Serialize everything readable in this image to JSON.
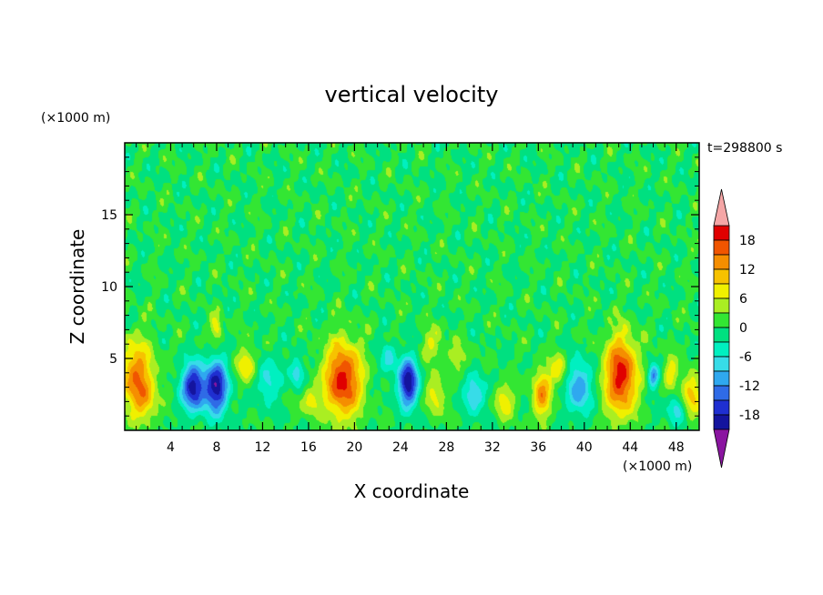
{
  "chart_data": {
    "type": "heatmap",
    "title": "vertical velocity",
    "xlabel": "X coordinate",
    "ylabel": "Z coordinate",
    "x_unit": "(×1000 m)",
    "y_unit": "(×1000 m)",
    "time_label": "t=298800 s",
    "xlim": [
      0,
      50
    ],
    "ylim": [
      0,
      20
    ],
    "x_ticks": [
      4,
      8,
      12,
      16,
      20,
      24,
      28,
      32,
      36,
      40,
      44,
      48
    ],
    "y_ticks": [
      5,
      10,
      15
    ],
    "colorbar": {
      "levels": [
        -21,
        -18,
        -15,
        -12,
        -9,
        -6,
        -3,
        0,
        3,
        6,
        9,
        12,
        15,
        18,
        21
      ],
      "tick_labels": [
        "18",
        "12",
        "6",
        "0",
        "-6",
        "-12",
        "-18"
      ],
      "tick_values": [
        18,
        12,
        6,
        0,
        -6,
        -12,
        -18
      ],
      "colors": [
        "#5a1a99",
        "#14149e",
        "#1f2fd1",
        "#2f6be6",
        "#2fa8ef",
        "#37dce8",
        "#00f0c0",
        "#00e080",
        "#33e633",
        "#aaee22",
        "#f0f000",
        "#f7c200",
        "#f58e00",
        "#f05500",
        "#e00000",
        "#ff9a9a"
      ],
      "under_color": "#8a15a0",
      "over_color": "#f5a6a6"
    },
    "cells": [
      {
        "x": 1.0,
        "z": 3.8,
        "w": 0.7,
        "sx": 1.5,
        "sz": 2.5
      },
      {
        "x": 1.8,
        "z": 2.0,
        "w": 0.3,
        "sx": 1.0,
        "sz": 1.5
      },
      {
        "x": 6.0,
        "z": 3.0,
        "w": -1.0,
        "sx": 1.0,
        "sz": 1.6
      },
      {
        "x": 8.0,
        "z": 3.0,
        "w": -1.0,
        "sx": 1.0,
        "sz": 1.8
      },
      {
        "x": 8.0,
        "z": 7.0,
        "w": 0.45,
        "sx": 0.5,
        "sz": 0.9
      },
      {
        "x": 10.6,
        "z": 4.5,
        "w": 0.5,
        "sx": 0.8,
        "sz": 1.1
      },
      {
        "x": 12.5,
        "z": 3.5,
        "w": -0.38,
        "sx": 1.0,
        "sz": 1.5
      },
      {
        "x": 15.0,
        "z": 4.0,
        "w": -0.45,
        "sx": 0.6,
        "sz": 1.0
      },
      {
        "x": 16.2,
        "z": 2.0,
        "w": 0.38,
        "sx": 0.8,
        "sz": 1.0
      },
      {
        "x": 19.0,
        "z": 3.5,
        "w": 1.0,
        "sx": 1.6,
        "sz": 2.6
      },
      {
        "x": 24.7,
        "z": 3.3,
        "w": -1.05,
        "sx": 0.85,
        "sz": 1.6
      },
      {
        "x": 23.0,
        "z": 5.0,
        "w": -0.35,
        "sx": 0.7,
        "sz": 1.2
      },
      {
        "x": 26.8,
        "z": 6.0,
        "w": 0.3,
        "sx": 1.0,
        "sz": 1.2
      },
      {
        "x": 27.0,
        "z": 2.5,
        "w": 0.4,
        "sx": 0.8,
        "sz": 1.5
      },
      {
        "x": 30.5,
        "z": 2.5,
        "w": -0.45,
        "sx": 1.0,
        "sz": 1.3
      },
      {
        "x": 29.0,
        "z": 5.0,
        "w": 0.22,
        "sx": 1.0,
        "sz": 1.0
      },
      {
        "x": 33.0,
        "z": 2.0,
        "w": 0.45,
        "sx": 0.8,
        "sz": 1.2
      },
      {
        "x": 36.3,
        "z": 2.5,
        "w": 0.65,
        "sx": 0.8,
        "sz": 1.7
      },
      {
        "x": 37.8,
        "z": 4.2,
        "w": 0.4,
        "sx": 0.8,
        "sz": 1.2
      },
      {
        "x": 39.5,
        "z": 3.0,
        "w": -0.6,
        "sx": 1.1,
        "sz": 1.8
      },
      {
        "x": 43.2,
        "z": 3.8,
        "w": 1.0,
        "sx": 1.4,
        "sz": 2.7
      },
      {
        "x": 46.0,
        "z": 3.8,
        "w": -0.65,
        "sx": 0.45,
        "sz": 0.8
      },
      {
        "x": 47.5,
        "z": 4.0,
        "w": 0.4,
        "sx": 0.6,
        "sz": 1.3
      },
      {
        "x": 49.3,
        "z": 2.5,
        "w": 0.55,
        "sx": 0.9,
        "sz": 1.5
      },
      {
        "x": 48.0,
        "z": 1.5,
        "w": -0.4,
        "sx": 0.8,
        "sz": 1.1
      }
    ]
  }
}
